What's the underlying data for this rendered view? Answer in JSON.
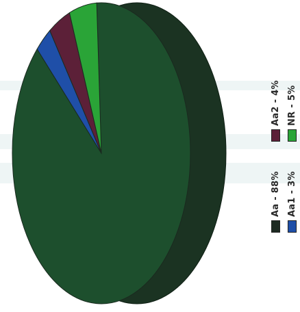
{
  "chart_data": {
    "type": "pie",
    "style": "3d-pie",
    "rotation": "legend rotated 90 degrees counter-clockwise",
    "title": "",
    "legend_placement": "right",
    "slices": [
      {
        "label": "Aa - 88%",
        "value": 88,
        "color": "#1d4f2d"
      },
      {
        "label": "Aa1 - 3%",
        "value": 3,
        "color": "#1f4fa8"
      },
      {
        "label": "Aa2 - 4%",
        "value": 4,
        "color": "#5c2038"
      },
      {
        "label": "NR - 5%",
        "value": 5,
        "color": "#2aa437"
      }
    ],
    "side_color": "#1b3322",
    "legend_swatch_colors": [
      "#1e2a22",
      "#1f4fa8",
      "#5c2038",
      "#2aa437"
    ]
  }
}
